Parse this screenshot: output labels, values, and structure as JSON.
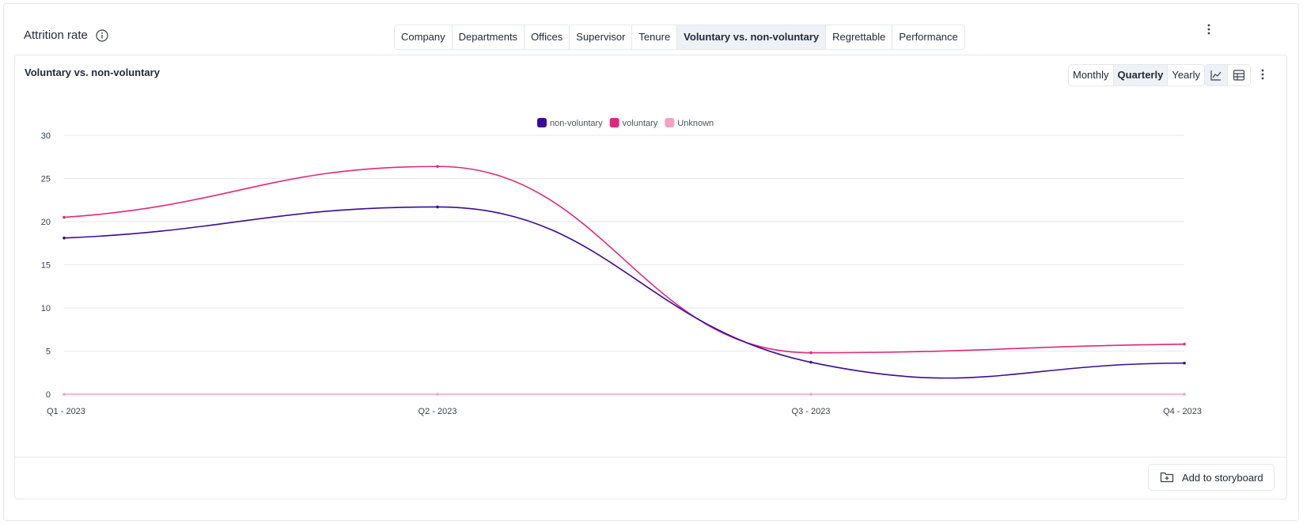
{
  "header": {
    "title": "Attrition rate",
    "tabs": [
      {
        "label": "Company"
      },
      {
        "label": "Departments"
      },
      {
        "label": "Offices"
      },
      {
        "label": "Supervisor"
      },
      {
        "label": "Tenure"
      },
      {
        "label": "Voluntary vs. non-voluntary"
      },
      {
        "label": "Regrettable"
      },
      {
        "label": "Performance"
      }
    ],
    "active_tab": "Voluntary vs. non-voluntary"
  },
  "card": {
    "title": "Voluntary vs. non-voluntary",
    "periods": [
      {
        "label": "Monthly"
      },
      {
        "label": "Quarterly"
      },
      {
        "label": "Yearly"
      }
    ],
    "active_period": "Quarterly",
    "view_icons": [
      "line-chart-icon",
      "table-icon"
    ],
    "storyboard_label": "Add to storyboard"
  },
  "chart_data": {
    "type": "line",
    "categories": [
      "Q1 - 2023",
      "Q2 - 2023",
      "Q3 - 2023",
      "Q4 - 2023"
    ],
    "ylim": [
      0,
      30
    ],
    "yticks": [
      0,
      5,
      10,
      15,
      20,
      25,
      30
    ],
    "grid": true,
    "legend": "top-center",
    "series": [
      {
        "name": "non-voluntary",
        "color": "#3b0a99",
        "values": [
          18.1,
          21.7,
          3.7,
          3.6
        ]
      },
      {
        "name": "voluntary",
        "color": "#e0287d",
        "values": [
          20.5,
          26.4,
          4.8,
          5.8
        ]
      },
      {
        "name": "Unknown",
        "color": "#f2a2c5",
        "values": [
          0,
          0,
          0,
          0
        ]
      }
    ]
  }
}
